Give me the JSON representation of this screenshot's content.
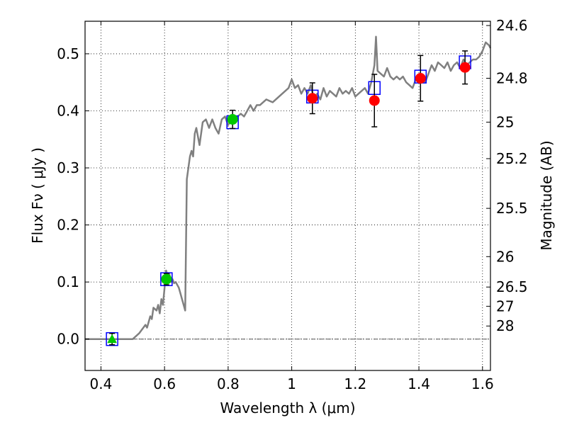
{
  "chart_data": {
    "type": "line",
    "xlabel": "Wavelength  λ (μm)",
    "ylabel": "Flux  Fν  ( μJy )",
    "ylabel_right": "Magnitude (AB)",
    "xlim": [
      0.35,
      1.625
    ],
    "ylim": [
      -0.055,
      0.557
    ],
    "grid": true,
    "zero_line": 0.0,
    "x_ticks": [
      {
        "value": 0.4,
        "label": "0.4"
      },
      {
        "value": 0.6,
        "label": "0.6"
      },
      {
        "value": 0.8,
        "label": "0.8"
      },
      {
        "value": 1.0,
        "label": "1"
      },
      {
        "value": 1.2,
        "label": "1.2"
      },
      {
        "value": 1.4,
        "label": "1.4"
      },
      {
        "value": 1.6,
        "label": "1.6"
      }
    ],
    "y_ticks": [
      {
        "value": 0.0,
        "label": "0.0"
      },
      {
        "value": 0.1,
        "label": "0.1"
      },
      {
        "value": 0.2,
        "label": "0.2"
      },
      {
        "value": 0.3,
        "label": "0.3"
      },
      {
        "value": 0.4,
        "label": "0.4"
      },
      {
        "value": 0.5,
        "label": "0.5"
      }
    ],
    "right_ticks": [
      {
        "flux": 0.5495,
        "label": "24.6"
      },
      {
        "flux": 0.4571,
        "label": "24.8"
      },
      {
        "flux": 0.3802,
        "label": "25"
      },
      {
        "flux": 0.3162,
        "label": "25.2"
      },
      {
        "flux": 0.2291,
        "label": "25.5"
      },
      {
        "flux": 0.1445,
        "label": "26"
      },
      {
        "flux": 0.0912,
        "label": "26.5"
      },
      {
        "flux": 0.0575,
        "label": "27"
      },
      {
        "flux": 0.0229,
        "label": "28"
      }
    ],
    "series": [
      {
        "kind": "sed_model",
        "color": "#808080",
        "x": [
          0.35,
          0.48,
          0.5,
          0.52,
          0.54,
          0.545,
          0.555,
          0.56,
          0.565,
          0.575,
          0.58,
          0.585,
          0.59,
          0.595,
          0.6,
          0.605,
          0.61,
          0.615,
          0.62,
          0.625,
          0.63,
          0.635,
          0.64,
          0.645,
          0.65,
          0.655,
          0.66,
          0.665,
          0.67,
          0.675,
          0.68,
          0.685,
          0.69,
          0.695,
          0.7,
          0.71,
          0.72,
          0.73,
          0.74,
          0.75,
          0.76,
          0.77,
          0.78,
          0.79,
          0.8,
          0.81,
          0.82,
          0.83,
          0.84,
          0.85,
          0.86,
          0.87,
          0.88,
          0.89,
          0.9,
          0.92,
          0.94,
          0.96,
          0.98,
          0.99,
          1.0,
          1.01,
          1.02,
          1.03,
          1.04,
          1.05,
          1.06,
          1.07,
          1.08,
          1.09,
          1.1,
          1.11,
          1.12,
          1.13,
          1.14,
          1.15,
          1.16,
          1.17,
          1.18,
          1.19,
          1.2,
          1.21,
          1.22,
          1.23,
          1.24,
          1.25,
          1.26,
          1.265,
          1.27,
          1.28,
          1.29,
          1.3,
          1.31,
          1.32,
          1.33,
          1.34,
          1.35,
          1.36,
          1.37,
          1.38,
          1.39,
          1.4,
          1.41,
          1.42,
          1.43,
          1.44,
          1.45,
          1.46,
          1.47,
          1.48,
          1.49,
          1.5,
          1.51,
          1.52,
          1.53,
          1.54,
          1.55,
          1.56,
          1.57,
          1.58,
          1.59,
          1.6,
          1.61,
          1.62,
          1.625
        ],
        "y": [
          0.0,
          0.0,
          0.0,
          0.01,
          0.025,
          0.02,
          0.04,
          0.035,
          0.055,
          0.05,
          0.06,
          0.045,
          0.07,
          0.06,
          0.09,
          0.12,
          0.11,
          0.115,
          0.1,
          0.105,
          0.098,
          0.1,
          0.095,
          0.09,
          0.08,
          0.07,
          0.06,
          0.05,
          0.28,
          0.3,
          0.32,
          0.33,
          0.32,
          0.36,
          0.37,
          0.34,
          0.38,
          0.385,
          0.37,
          0.385,
          0.37,
          0.36,
          0.385,
          0.39,
          0.375,
          0.385,
          0.38,
          0.39,
          0.395,
          0.39,
          0.4,
          0.41,
          0.4,
          0.41,
          0.41,
          0.42,
          0.415,
          0.425,
          0.435,
          0.44,
          0.455,
          0.44,
          0.445,
          0.43,
          0.44,
          0.43,
          0.445,
          0.42,
          0.43,
          0.42,
          0.44,
          0.425,
          0.435,
          0.43,
          0.425,
          0.44,
          0.43,
          0.435,
          0.43,
          0.44,
          0.425,
          0.43,
          0.435,
          0.44,
          0.43,
          0.45,
          0.48,
          0.53,
          0.47,
          0.465,
          0.46,
          0.475,
          0.46,
          0.455,
          0.46,
          0.455,
          0.46,
          0.45,
          0.445,
          0.44,
          0.455,
          0.46,
          0.455,
          0.45,
          0.465,
          0.48,
          0.47,
          0.485,
          0.48,
          0.475,
          0.485,
          0.47,
          0.48,
          0.485,
          0.475,
          0.49,
          0.48,
          0.485,
          0.49,
          0.49,
          0.495,
          0.505,
          0.52,
          0.515,
          0.51
        ]
      },
      {
        "kind": "model_photometry",
        "marker": "open_square",
        "color": "#0000ff",
        "x": [
          0.435,
          0.606,
          0.814,
          1.065,
          1.26,
          1.405,
          1.545
        ],
        "y": [
          0.0,
          0.105,
          0.38,
          0.425,
          0.44,
          0.46,
          0.485
        ]
      },
      {
        "kind": "observed",
        "marker": "circle",
        "color": "#00c800",
        "x": [
          0.606,
          0.814
        ],
        "y": [
          0.105,
          0.385
        ],
        "yerr": [
          0.01,
          0.016
        ]
      },
      {
        "kind": "observed",
        "marker": "triangle",
        "color": "#00c800",
        "x": [
          0.435
        ],
        "y": [
          0.0
        ],
        "yerr": [
          0.01
        ]
      },
      {
        "kind": "observed",
        "marker": "circle",
        "color": "#ff0000",
        "x": [
          1.065,
          1.26,
          1.405,
          1.545
        ],
        "y": [
          0.422,
          0.418,
          0.457,
          0.476
        ],
        "yerr": [
          0.027,
          0.046,
          0.04,
          0.029
        ]
      }
    ]
  }
}
